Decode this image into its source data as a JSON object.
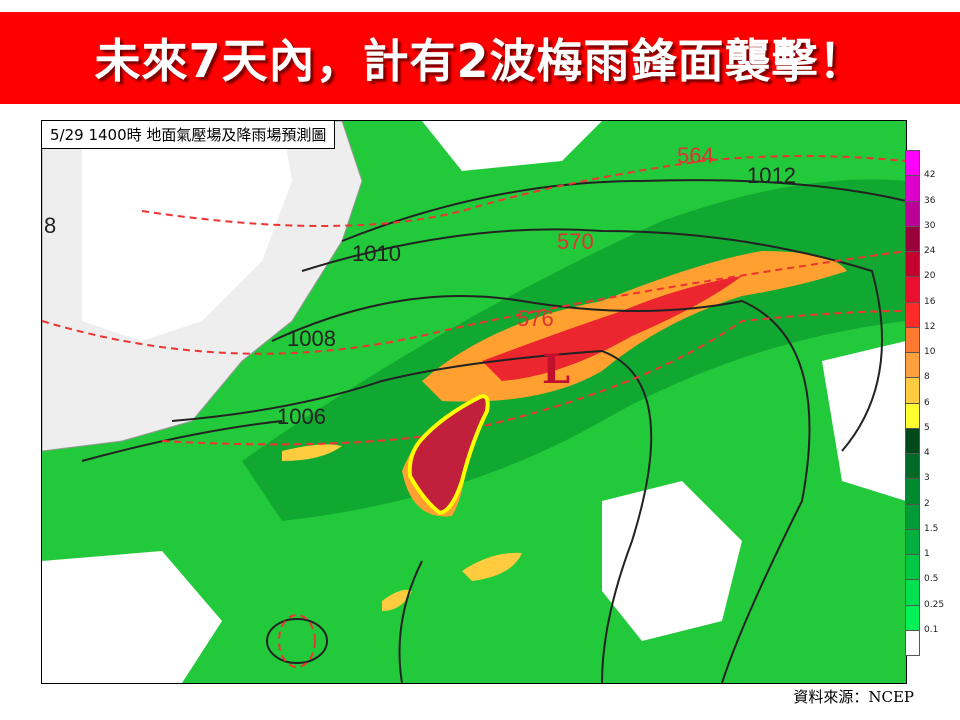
{
  "banner": {
    "title": "未來7天內，計有2波梅雨鋒面襲擊！",
    "color": "#ff0000"
  },
  "map": {
    "label": "5/29  1400時  地面氣壓場及降雨場預測圖",
    "isobars": [
      "1012",
      "1010",
      "1008",
      "1006",
      "8"
    ],
    "heights": [
      "564",
      "570",
      "576"
    ],
    "low_marker": "L",
    "highlight_region": "Taiwan (yellow outline)",
    "highlight_color": "#ffff00"
  },
  "legend": {
    "ticks": [
      "42",
      "36",
      "30",
      "24",
      "20",
      "16",
      "12",
      "10",
      "8",
      "6",
      "5",
      "4",
      "3",
      "2",
      "1.5",
      "1",
      "0.5",
      "0.25",
      "0.1"
    ],
    "colors": [
      "#ff00ff",
      "#dd00cc",
      "#bb0099",
      "#99003c",
      "#c4002e",
      "#e8102e",
      "#ff2a2a",
      "#ff7a30",
      "#ffa040",
      "#ffcc40",
      "#ffff30",
      "#004a1a",
      "#006a26",
      "#008a30",
      "#009a36",
      "#00b03c",
      "#00c844",
      "#00e050",
      "#00f05a",
      "#ffffff"
    ]
  },
  "source": "資料來源：NCEP"
}
